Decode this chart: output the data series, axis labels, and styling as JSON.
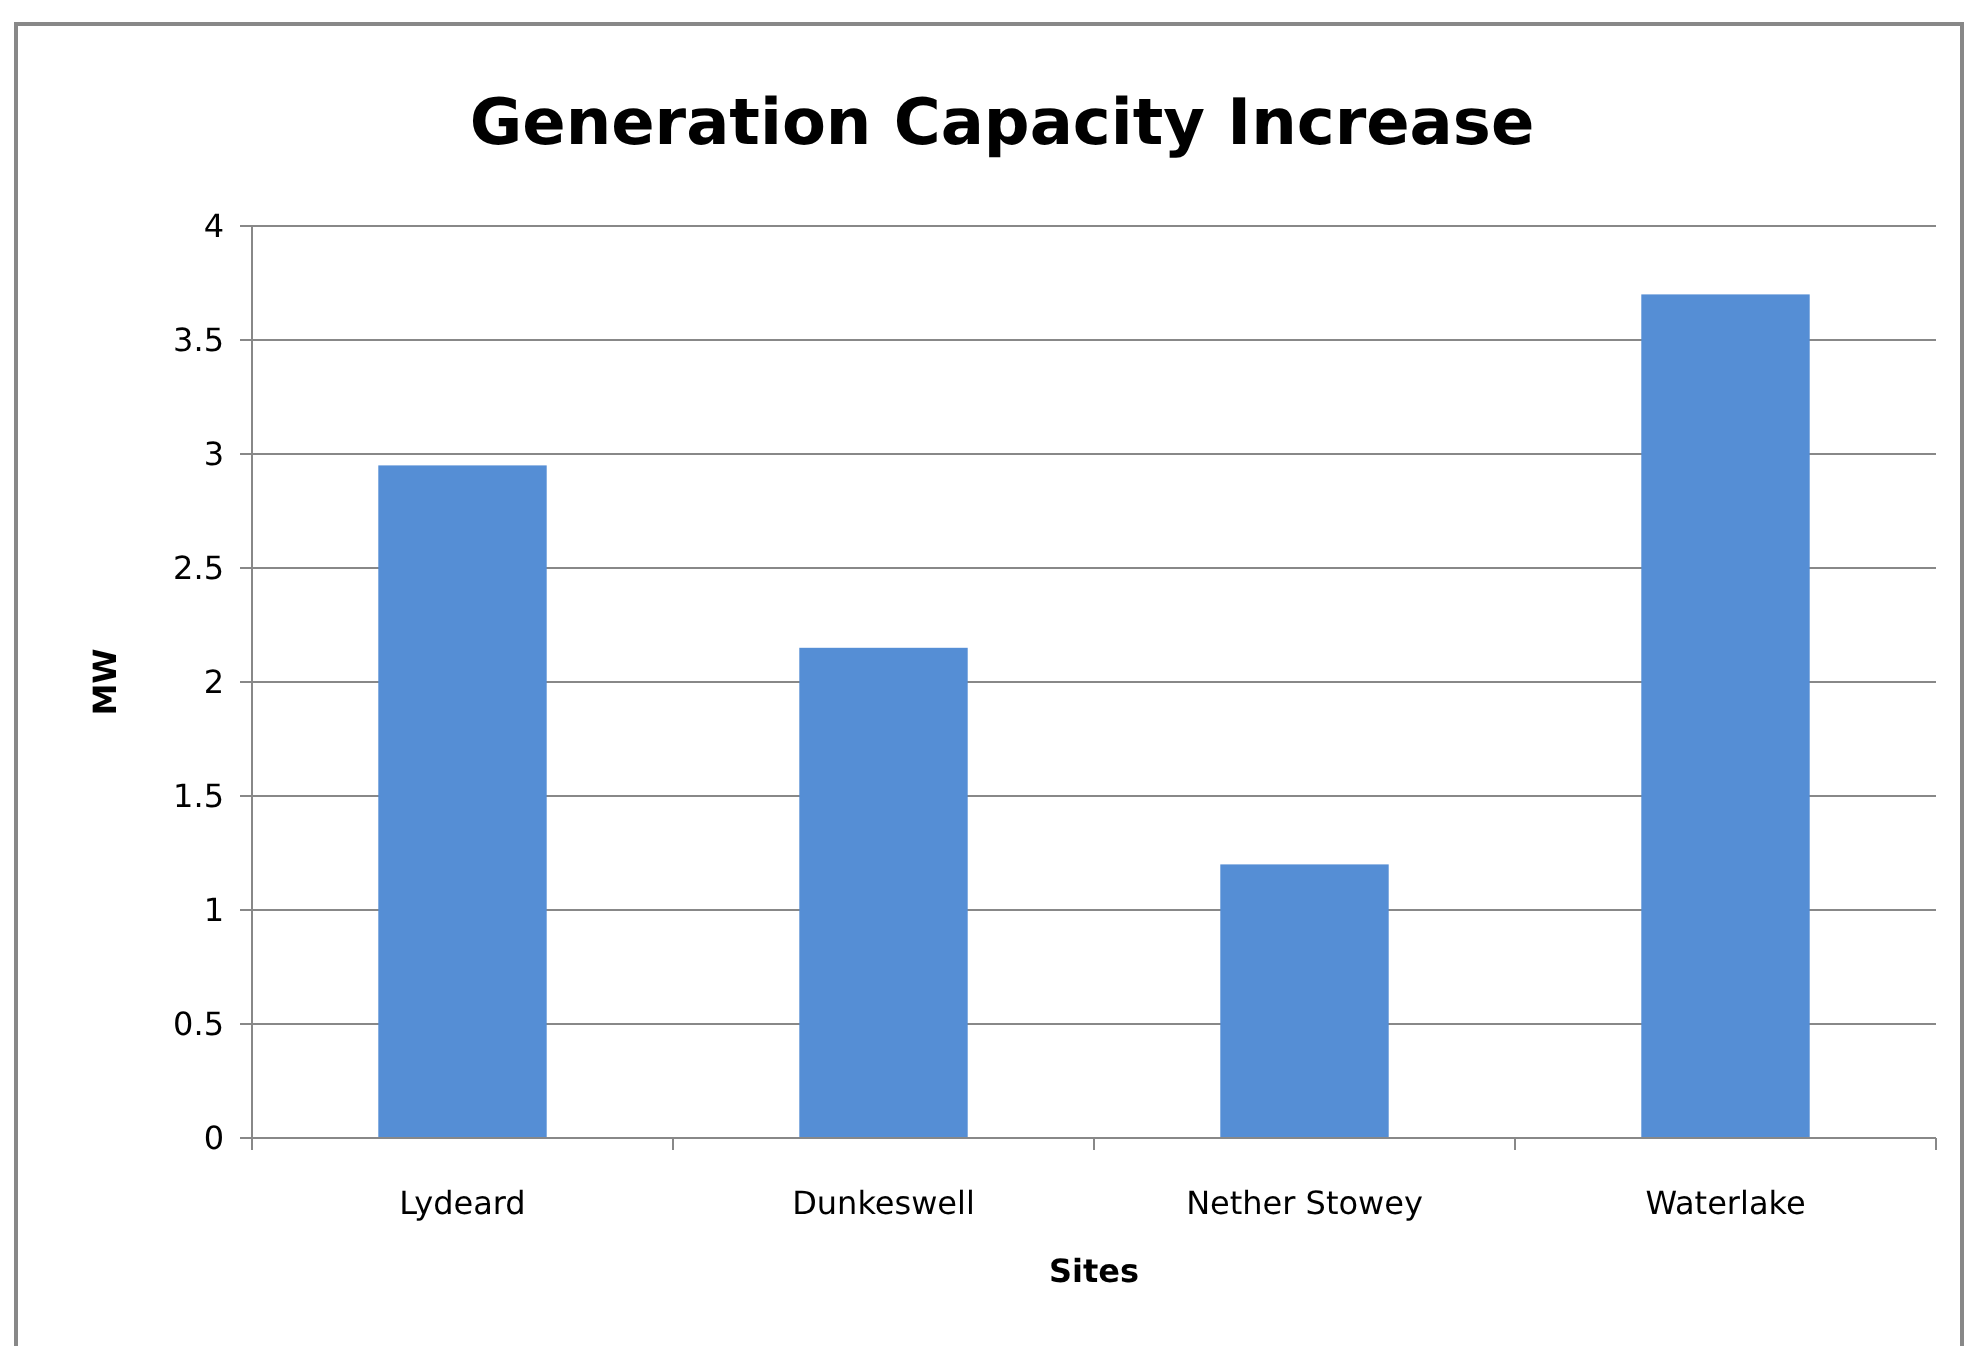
{
  "chart_data": {
    "type": "bar",
    "title": "Generation Capacity Increase",
    "xlabel": "Sites",
    "ylabel": "MW",
    "categories": [
      "Lydeard",
      "Dunkeswell",
      "Nether Stowey",
      "Waterlake"
    ],
    "values": [
      2.95,
      2.15,
      1.2,
      3.7
    ],
    "color": "#558ed5",
    "ylim": [
      0,
      4
    ],
    "yticks": [
      0,
      0.5,
      1,
      1.5,
      2,
      2.5,
      3,
      3.5,
      4
    ],
    "grid": "y"
  }
}
